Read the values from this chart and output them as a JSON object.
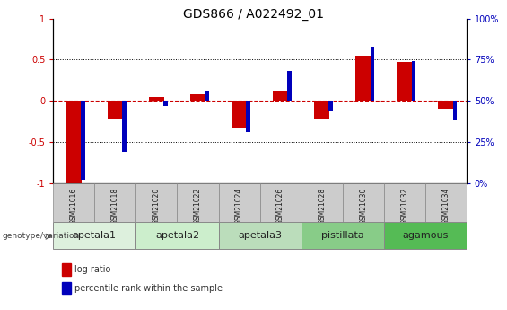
{
  "title": "GDS866 / A022492_01",
  "samples": [
    "GSM21016",
    "GSM21018",
    "GSM21020",
    "GSM21022",
    "GSM21024",
    "GSM21026",
    "GSM21028",
    "GSM21030",
    "GSM21032",
    "GSM21034"
  ],
  "log_ratio": [
    -1.0,
    -0.22,
    0.05,
    0.08,
    -0.33,
    0.12,
    -0.22,
    0.55,
    0.47,
    -0.1
  ],
  "percentile_rank": [
    2,
    19,
    47,
    56,
    31,
    68,
    44,
    83,
    74,
    38
  ],
  "groups": [
    {
      "label": "apetala1",
      "start": 0,
      "end": 2,
      "color": "#ddf0dd"
    },
    {
      "label": "apetala2",
      "start": 2,
      "end": 4,
      "color": "#cceecc"
    },
    {
      "label": "apetala3",
      "start": 4,
      "end": 6,
      "color": "#bbddbb"
    },
    {
      "label": "pistillata",
      "start": 6,
      "end": 8,
      "color": "#88cc88"
    },
    {
      "label": "agamous",
      "start": 8,
      "end": 10,
      "color": "#55bb55"
    }
  ],
  "ylim": [
    -1.0,
    1.0
  ],
  "y_left_ticks": [
    -1,
    -0.5,
    0,
    0.5,
    1
  ],
  "y_right_ticks": [
    0,
    25,
    50,
    75,
    100
  ],
  "bar_color_red": "#cc0000",
  "bar_color_blue": "#0000bb",
  "zero_line_color": "#cc0000",
  "sample_box_color": "#cccccc",
  "title_fontsize": 10,
  "tick_fontsize": 7,
  "label_fontsize": 8
}
